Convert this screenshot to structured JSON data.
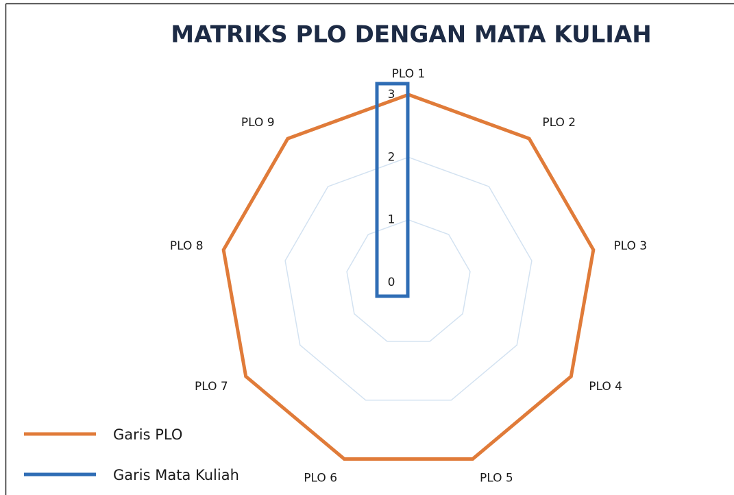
{
  "chart_data": {
    "type": "radar",
    "title": "MATRIKS PLO DENGAN MATA KULIAH",
    "categories": [
      "PLO 1",
      "PLO 2",
      "PLO 3",
      "PLO 4",
      "PLO 5",
      "PLO 6",
      "PLO 7",
      "PLO 8",
      "PLO 9"
    ],
    "series": [
      {
        "name": "Garis PLO",
        "color": "#e07b39",
        "values": [
          3,
          3,
          3,
          3,
          3,
          3,
          3,
          3,
          3
        ]
      },
      {
        "name": "Garis Mata Kuliah",
        "color": "#2f6db5",
        "values": [
          0,
          0,
          0,
          0,
          0,
          0,
          0,
          0,
          0
        ]
      }
    ],
    "ylim": [
      0,
      3
    ],
    "yticks": [
      0,
      1,
      2,
      3
    ],
    "grid": true
  }
}
